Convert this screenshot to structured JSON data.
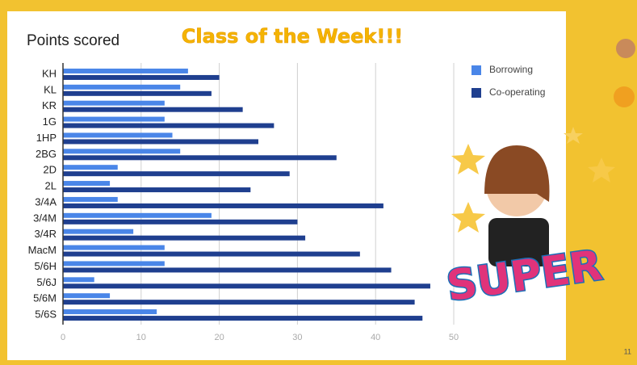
{
  "slide": {
    "heading": "Class of the Week!!!",
    "page_number": "11",
    "sticker_text": "SUPER"
  },
  "chart_data": {
    "type": "bar",
    "orientation": "horizontal",
    "title": "Points scored",
    "categories": [
      "KH",
      "KL",
      "KR",
      "1G",
      "1HP",
      "2BG",
      "2D",
      "2L",
      "3/4A",
      "3/4M",
      "3/4R",
      "MacM",
      "5/6H",
      "5/6J",
      "5/6M",
      "5/6S"
    ],
    "series": [
      {
        "name": "Borrowing",
        "color": "#4a86e8",
        "values": [
          16,
          15,
          13,
          13,
          14,
          15,
          7,
          6,
          7,
          19,
          9,
          13,
          13,
          4,
          6,
          12
        ]
      },
      {
        "name": "Co-operating",
        "color": "#1f3f8f",
        "values": [
          20,
          19,
          23,
          27,
          25,
          35,
          29,
          24,
          41,
          30,
          31,
          38,
          42,
          47,
          45,
          46
        ]
      }
    ],
    "xlim": [
      0,
      50
    ],
    "xticks": [
      0,
      10,
      20,
      30,
      40,
      50
    ],
    "grid": true,
    "legend": "top-right"
  }
}
